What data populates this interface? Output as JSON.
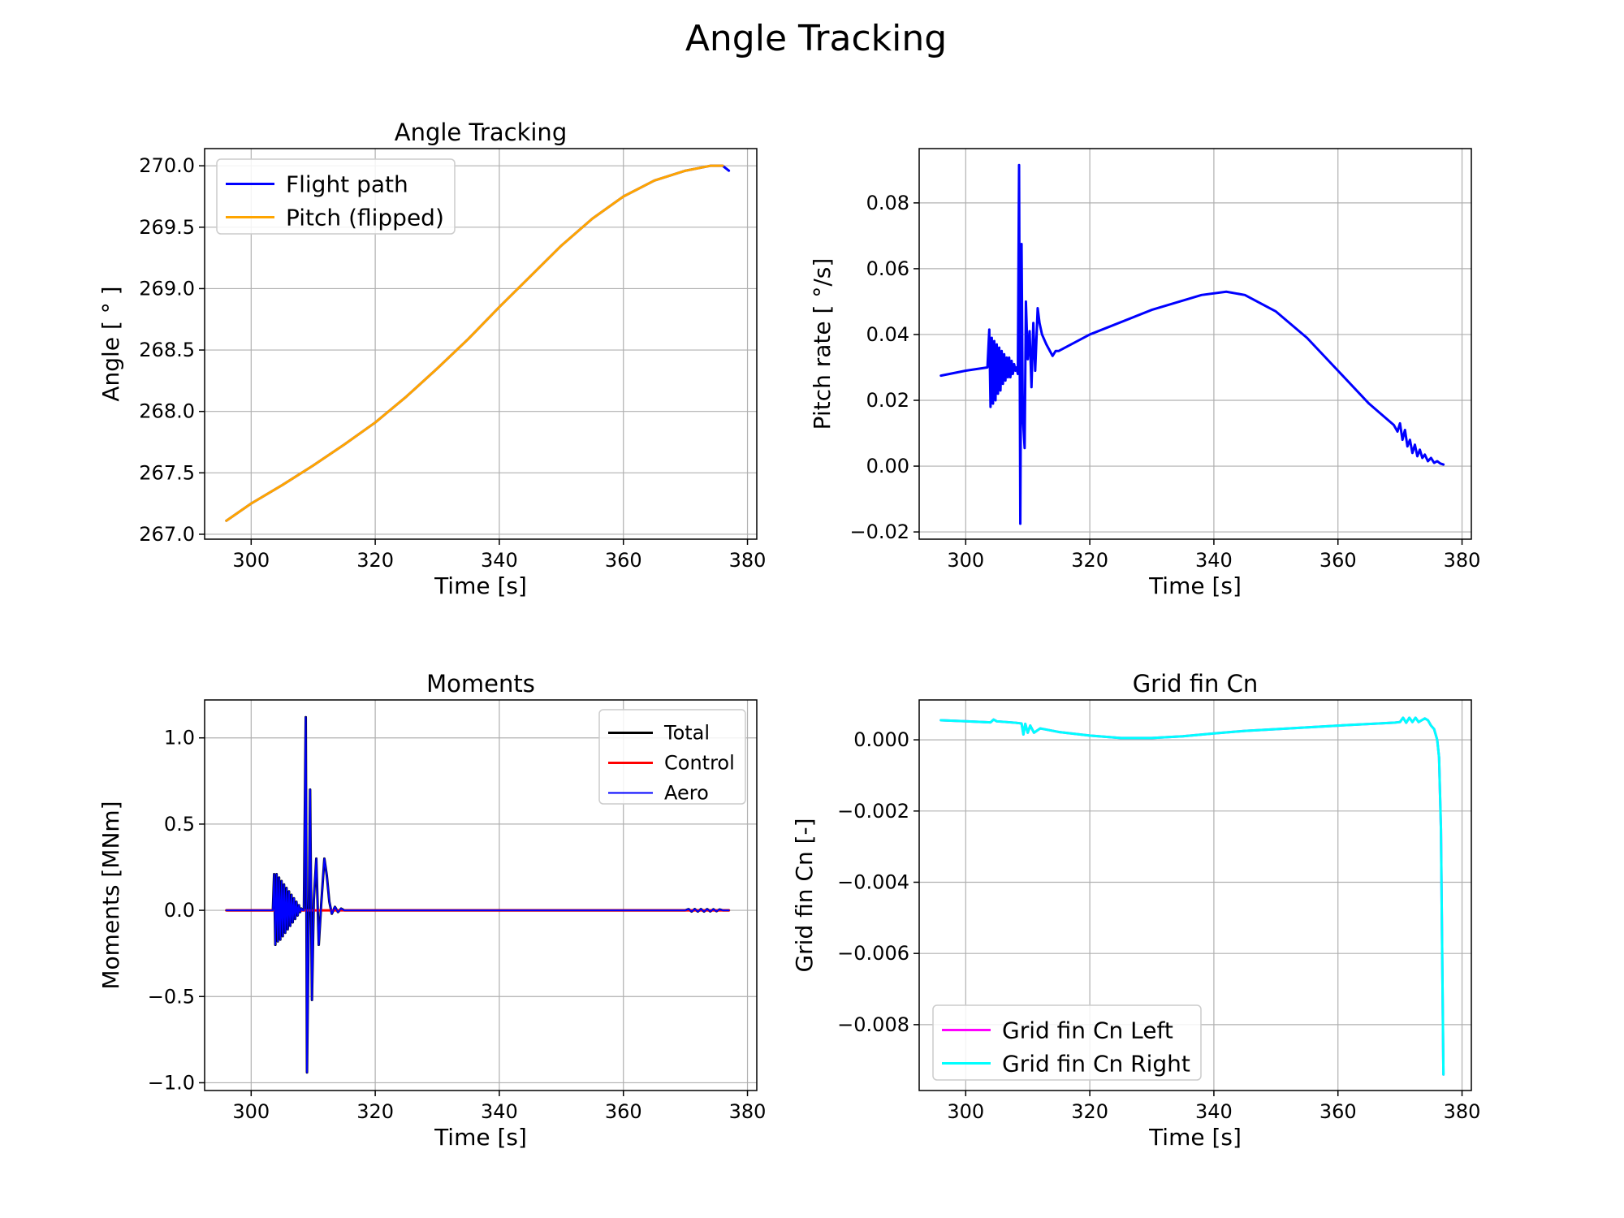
{
  "figure": {
    "title": "Angle Tracking"
  },
  "chart_data": [
    {
      "id": "p1",
      "type": "line",
      "title": "Angle Tracking",
      "xlabel": "Time [s]",
      "ylabel": "Angle [ ° ]",
      "xlim": [
        292.5,
        381.5
      ],
      "ylim": [
        266.96,
        270.14
      ],
      "xticks": [
        300,
        320,
        340,
        360,
        380
      ],
      "yticks": [
        267.0,
        267.5,
        268.0,
        268.5,
        269.0,
        269.5,
        270.0
      ],
      "ytick_decimals": 1,
      "grid": true,
      "legend": "upper-left",
      "series": [
        {
          "name": "Flight path",
          "color": "#0000ff",
          "width": 3,
          "x": [
            296,
            300,
            305,
            310,
            315,
            320,
            325,
            330,
            335,
            340,
            345,
            350,
            355,
            360,
            365,
            370,
            374,
            376,
            377
          ],
          "y": [
            267.11,
            267.25,
            267.4,
            267.56,
            267.73,
            267.91,
            268.12,
            268.35,
            268.59,
            268.85,
            269.1,
            269.35,
            269.57,
            269.75,
            269.88,
            269.96,
            270.0,
            270.0,
            269.96
          ]
        },
        {
          "name": "Pitch (flipped)",
          "color": "#ffa500",
          "width": 3,
          "x": [
            296,
            300,
            305,
            310,
            315,
            320,
            325,
            330,
            335,
            340,
            345,
            350,
            355,
            360,
            365,
            370,
            374,
            376
          ],
          "y": [
            267.11,
            267.25,
            267.4,
            267.56,
            267.73,
            267.91,
            268.12,
            268.35,
            268.59,
            268.85,
            269.1,
            269.35,
            269.57,
            269.75,
            269.88,
            269.96,
            270.0,
            270.0
          ]
        }
      ]
    },
    {
      "id": "p2",
      "type": "line",
      "title": "",
      "xlabel": "Time [s]",
      "ylabel": "Pitch rate [ °/s]",
      "xlim": [
        292.5,
        381.5
      ],
      "ylim": [
        -0.0222,
        0.0965
      ],
      "xticks": [
        300,
        320,
        340,
        360,
        380
      ],
      "yticks": [
        -0.02,
        0.0,
        0.02,
        0.04,
        0.06,
        0.08
      ],
      "ytick_decimals": 2,
      "grid": true,
      "series": [
        {
          "name": "",
          "color": "#0000ff",
          "width": 3,
          "x": [
            296,
            300,
            303.5,
            303.8,
            304.0,
            304.2,
            304.4,
            304.6,
            304.8,
            305.0,
            305.2,
            305.4,
            305.6,
            305.8,
            306.0,
            306.2,
            306.4,
            306.6,
            306.8,
            307.0,
            307.2,
            307.4,
            307.6,
            307.8,
            308.0,
            308.2,
            308.4,
            308.6,
            308.8,
            309.0,
            309.2,
            309.5,
            309.7,
            310.0,
            310.3,
            310.6,
            310.9,
            311.2,
            311.6,
            311.9,
            312.3,
            313,
            314,
            314.5,
            315,
            320,
            330,
            338,
            342,
            345,
            350,
            355,
            360,
            365,
            369,
            369.6,
            370.0,
            370.4,
            370.8,
            371.2,
            371.6,
            372.0,
            372.4,
            372.8,
            373.2,
            373.6,
            374.0,
            374.5,
            375,
            375.5,
            376,
            376.5,
            377
          ],
          "y": [
            0.0275,
            0.029,
            0.03,
            0.0415,
            0.018,
            0.039,
            0.019,
            0.038,
            0.02,
            0.037,
            0.022,
            0.036,
            0.023,
            0.035,
            0.025,
            0.034,
            0.026,
            0.033,
            0.027,
            0.033,
            0.027,
            0.032,
            0.028,
            0.031,
            0.029,
            0.03,
            0.028,
            0.0915,
            -0.0175,
            0.0675,
            0.015,
            0.0055,
            0.05,
            0.0325,
            0.041,
            0.024,
            0.0435,
            0.029,
            0.048,
            0.0435,
            0.04,
            0.037,
            0.0335,
            0.035,
            0.035,
            0.04,
            0.0475,
            0.052,
            0.053,
            0.052,
            0.047,
            0.039,
            0.029,
            0.019,
            0.0125,
            0.0105,
            0.013,
            0.008,
            0.011,
            0.006,
            0.008,
            0.004,
            0.0065,
            0.003,
            0.005,
            0.0025,
            0.0035,
            0.0015,
            0.0025,
            0.001,
            0.0015,
            0.0008,
            0.0005
          ]
        }
      ]
    },
    {
      "id": "p3",
      "type": "line",
      "title": "Moments",
      "xlabel": "Time [s]",
      "ylabel": "Moments [MNm]",
      "xlim": [
        292.5,
        381.5
      ],
      "ylim": [
        -1.045,
        1.22
      ],
      "xticks": [
        300,
        320,
        340,
        360,
        380
      ],
      "yticks": [
        -1.0,
        -0.5,
        0.0,
        0.5,
        1.0
      ],
      "ytick_decimals": 1,
      "grid": true,
      "legend": "upper-right",
      "series": [
        {
          "name": "Total",
          "color": "#000000",
          "width": 3,
          "x": [
            296,
            303.5,
            303.7,
            303.9,
            304.1,
            304.3,
            304.5,
            304.7,
            304.9,
            305.1,
            305.3,
            305.5,
            305.7,
            305.9,
            306.1,
            306.3,
            306.5,
            306.7,
            306.9,
            307.1,
            307.3,
            307.5,
            307.7,
            307.9,
            308.1,
            308.3,
            308.5,
            308.8,
            309.0,
            309.3,
            309.5,
            309.8,
            310.1,
            310.5,
            310.9,
            311.3,
            311.8,
            312.2,
            312.6,
            313.0,
            313.5,
            314.0,
            314.5,
            315,
            320,
            340,
            360,
            370,
            370.5,
            371,
            371.5,
            372,
            372.5,
            373,
            373.5,
            374,
            374.5,
            375,
            375.5,
            376,
            377
          ],
          "y": [
            0.0,
            0.0,
            0.21,
            -0.2,
            0.21,
            -0.18,
            0.19,
            -0.17,
            0.17,
            -0.15,
            0.15,
            -0.13,
            0.13,
            -0.11,
            0.11,
            -0.09,
            0.09,
            -0.07,
            0.07,
            -0.05,
            0.05,
            -0.03,
            0.03,
            -0.01,
            0.01,
            0.0,
            0.0,
            1.12,
            -0.94,
            0.02,
            0.7,
            -0.52,
            0.06,
            0.3,
            -0.2,
            0.04,
            0.3,
            0.2,
            0.05,
            -0.02,
            0.02,
            -0.01,
            0.01,
            0.0,
            0.0,
            0.0,
            0.0,
            0.0,
            0.007,
            -0.007,
            0.007,
            -0.007,
            0.007,
            -0.007,
            0.007,
            -0.006,
            0.006,
            -0.005,
            0.005,
            0.0,
            0.0
          ]
        },
        {
          "name": "Control",
          "color": "#ff0000",
          "width": 3,
          "x": [
            296,
            377
          ],
          "y": [
            0.0,
            0.0
          ]
        },
        {
          "name": "Aero",
          "color": "#0000ff",
          "width": 2,
          "x": [
            296,
            303.5,
            303.7,
            303.9,
            304.1,
            304.3,
            304.5,
            304.7,
            304.9,
            305.1,
            305.3,
            305.5,
            305.7,
            305.9,
            306.1,
            306.3,
            306.5,
            306.7,
            306.9,
            307.1,
            307.3,
            307.5,
            307.7,
            307.9,
            308.1,
            308.3,
            308.5,
            308.8,
            309.0,
            309.3,
            309.5,
            309.8,
            310.1,
            310.5,
            310.9,
            311.3,
            311.8,
            312.2,
            312.6,
            313.0,
            313.5,
            314.0,
            314.5,
            315,
            320,
            340,
            360,
            370,
            370.5,
            371,
            371.5,
            372,
            372.5,
            373,
            373.5,
            374,
            374.5,
            375,
            375.5,
            376,
            377
          ],
          "y": [
            0.0,
            0.0,
            0.21,
            -0.2,
            0.21,
            -0.18,
            0.19,
            -0.17,
            0.17,
            -0.15,
            0.15,
            -0.13,
            0.13,
            -0.11,
            0.11,
            -0.09,
            0.09,
            -0.07,
            0.07,
            -0.05,
            0.05,
            -0.03,
            0.03,
            -0.01,
            0.01,
            0.0,
            0.0,
            1.12,
            -0.94,
            0.02,
            0.7,
            -0.52,
            0.06,
            0.3,
            -0.2,
            0.04,
            0.3,
            0.2,
            0.05,
            -0.02,
            0.02,
            -0.01,
            0.01,
            0.0,
            0.0,
            0.0,
            0.0,
            0.0,
            0.007,
            -0.007,
            0.007,
            -0.007,
            0.007,
            -0.007,
            0.007,
            -0.006,
            0.006,
            -0.005,
            0.005,
            0.0,
            0.0
          ]
        }
      ]
    },
    {
      "id": "p4",
      "type": "line",
      "title": "Grid fin Cn",
      "xlabel": "Time [s]",
      "ylabel": "Grid fin Cn [-]",
      "xlim": [
        292.5,
        381.5
      ],
      "ylim": [
        -0.00985,
        0.00112
      ],
      "xticks": [
        300,
        320,
        340,
        360,
        380
      ],
      "yticks": [
        -0.008,
        -0.006,
        -0.004,
        -0.002,
        0.0
      ],
      "ytick_decimals": 3,
      "grid": true,
      "legend": "lower-left",
      "series": [
        {
          "name": "Grid fin Cn Left",
          "color": "#ff00ff",
          "width": 3,
          "x": [
            296,
            300,
            304,
            304.5,
            305,
            308,
            309,
            309.3,
            309.6,
            310.0,
            310.4,
            311,
            312,
            315,
            320,
            325,
            330,
            335,
            340,
            345,
            350,
            360,
            369,
            370,
            370.5,
            371,
            371.5,
            372,
            372.5,
            373,
            373.5,
            374,
            374.5,
            375,
            375.5,
            376,
            376.3,
            376.6,
            376.8,
            377
          ],
          "y": [
            0.00055,
            0.00052,
            0.00049,
            0.00057,
            0.00052,
            0.00048,
            0.00046,
            0.00015,
            0.00045,
            0.0002,
            0.0004,
            0.0002,
            0.00032,
            0.00022,
            0.00012,
            5e-05,
            5e-05,
            0.0001,
            0.00018,
            0.00025,
            0.0003,
            0.0004,
            0.00048,
            0.0005,
            0.00062,
            0.00048,
            0.00062,
            0.0005,
            0.00062,
            0.0005,
            0.00055,
            0.0006,
            0.00055,
            0.0004,
            0.0003,
            0.0,
            -0.0005,
            -0.0025,
            -0.006,
            -0.0094
          ]
        },
        {
          "name": "Grid fin Cn Right",
          "color": "#00ffff",
          "width": 3,
          "x": [
            296,
            300,
            304,
            304.5,
            305,
            308,
            309,
            309.3,
            309.6,
            310.0,
            310.4,
            311,
            312,
            315,
            320,
            325,
            330,
            335,
            340,
            345,
            350,
            360,
            369,
            370,
            370.5,
            371,
            371.5,
            372,
            372.5,
            373,
            373.5,
            374,
            374.5,
            375,
            375.5,
            376,
            376.3,
            376.6,
            376.8,
            377
          ],
          "y": [
            0.00055,
            0.00052,
            0.00049,
            0.00057,
            0.00052,
            0.00048,
            0.00046,
            0.00015,
            0.00045,
            0.0002,
            0.0004,
            0.0002,
            0.00032,
            0.00022,
            0.00012,
            5e-05,
            5e-05,
            0.0001,
            0.00018,
            0.00025,
            0.0003,
            0.0004,
            0.00048,
            0.0005,
            0.00062,
            0.00048,
            0.00062,
            0.0005,
            0.00062,
            0.0005,
            0.00055,
            0.0006,
            0.00055,
            0.0004,
            0.0003,
            0.0,
            -0.0005,
            -0.0025,
            -0.006,
            -0.0094
          ]
        }
      ]
    }
  ]
}
